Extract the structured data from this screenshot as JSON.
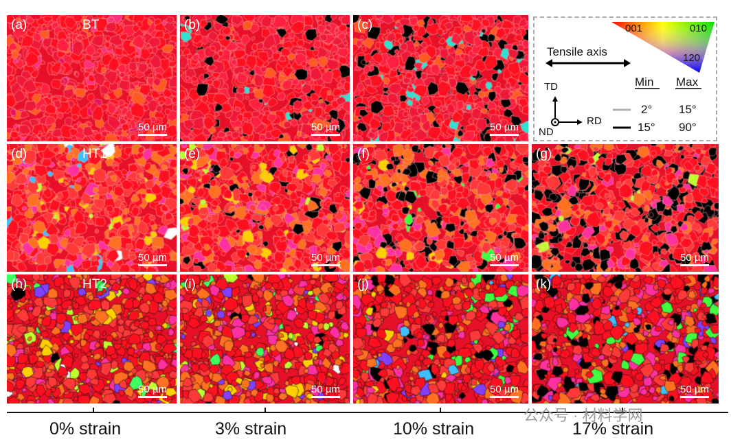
{
  "panels": [
    {
      "label": "(a)",
      "condition": "BT",
      "scale": "50 µm",
      "strain": "0%",
      "palette": "bt"
    },
    {
      "label": "(b)",
      "condition": "",
      "scale": "50 µm",
      "strain": "3%",
      "palette": "bt2"
    },
    {
      "label": "(c)",
      "condition": "",
      "scale": "50 µm",
      "strain": "10%",
      "palette": "bt3"
    },
    {
      "label": "(d)",
      "condition": "HT1",
      "scale": "50 µm",
      "strain": "0%",
      "palette": "ht1"
    },
    {
      "label": "(e)",
      "condition": "",
      "scale": "50 µm",
      "strain": "3%",
      "palette": "ht1b"
    },
    {
      "label": "(f)",
      "condition": "",
      "scale": "50 µm",
      "strain": "10%",
      "palette": "ht1c"
    },
    {
      "label": "(g)",
      "condition": "",
      "scale": "50 µm",
      "strain": "17%",
      "palette": "ht1d"
    },
    {
      "label": "(h)",
      "condition": "HT2",
      "scale": "50 µm",
      "strain": "0%",
      "palette": "ht2"
    },
    {
      "label": "(i)",
      "condition": "",
      "scale": "50 µm",
      "strain": "3%",
      "palette": "ht2"
    },
    {
      "label": "(j)",
      "condition": "",
      "scale": "50 µm",
      "strain": "10%",
      "palette": "ht2c"
    },
    {
      "label": "(k)",
      "condition": "",
      "scale": "50 µm",
      "strain": "17%",
      "palette": "ht2d"
    }
  ],
  "legend": {
    "ipf_corners": [
      "001",
      "010",
      "120"
    ],
    "tensile_axis": "Tensile axis",
    "td": "TD",
    "rd": "RD",
    "nd": "ND",
    "min": "Min",
    "max": "Max",
    "low_angle": {
      "min": "2°",
      "max": "15°",
      "color": "#b0b0b0"
    },
    "high_angle": {
      "min": "15°",
      "max": "90°",
      "color": "#000000"
    }
  },
  "axis_labels": [
    "0% strain",
    "3% strain",
    "10% strain",
    "17% strain"
  ],
  "watermark": "公众号 · 材料学网"
}
